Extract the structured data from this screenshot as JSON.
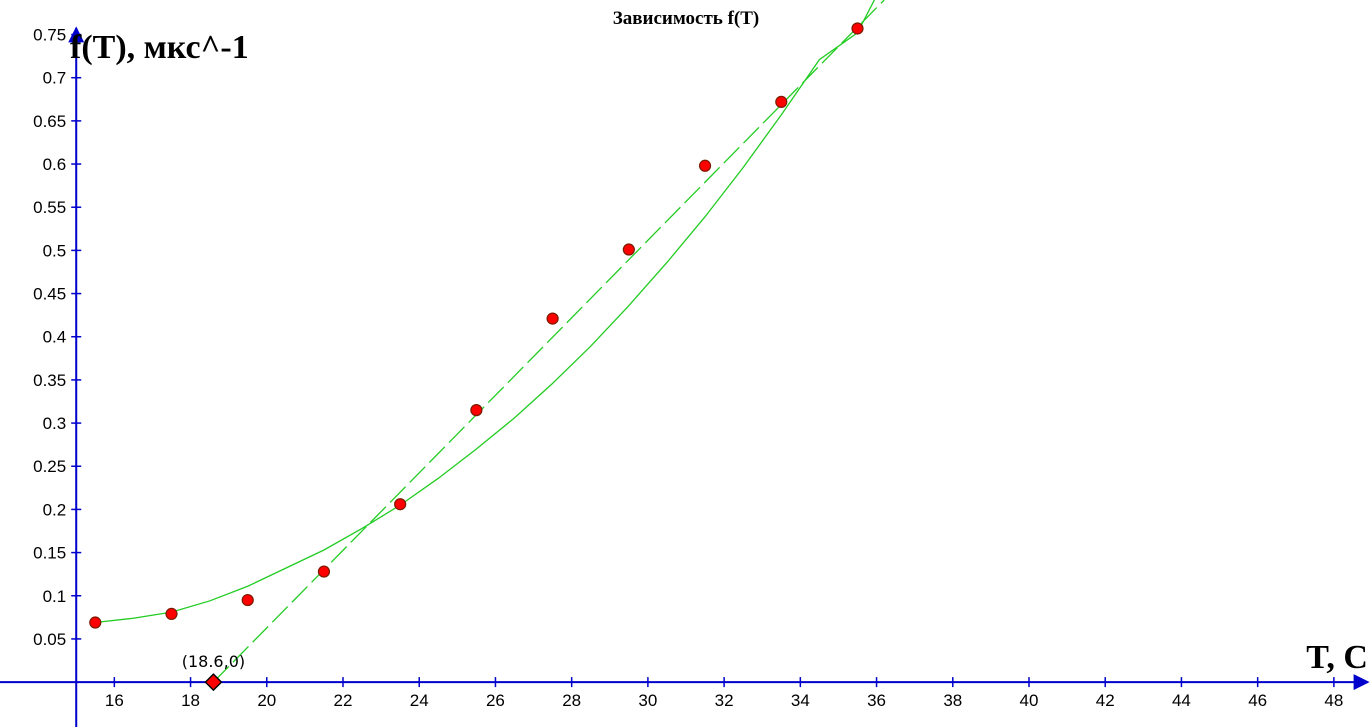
{
  "chart_data": {
    "type": "scatter",
    "title": "Зависимость f(T)",
    "xlabel": "T, C",
    "ylabel": "f(T), мкс^-1",
    "xlim": [
      13.0,
      49.0
    ],
    "ylim": [
      -0.052,
      0.79
    ],
    "x_ticks": [
      16,
      18,
      20,
      22,
      24,
      26,
      28,
      30,
      32,
      34,
      36,
      38,
      40,
      42,
      44,
      46,
      48
    ],
    "y_ticks": [
      0.05,
      0.1,
      0.15,
      0.2,
      0.25,
      0.3,
      0.35,
      0.4,
      0.45,
      0.5,
      0.55,
      0.6,
      0.65,
      0.7,
      0.75
    ],
    "y_tick_labels": [
      "0.05",
      "0.1",
      "0.15",
      "0.2",
      "0.25",
      "0.3",
      "0.35",
      "0.4",
      "0.45",
      "0.5",
      "0.55",
      "0.6",
      "0.65",
      "0.7",
      "0.75"
    ],
    "grid": false,
    "series": [
      {
        "type": "scatter",
        "x": [
          15.5,
          17.5,
          19.5,
          21.5,
          23.5,
          25.5,
          27.5,
          29.5,
          31.5,
          33.5,
          35.5
        ],
        "y": [
          0.069,
          0.079,
          0.095,
          0.128,
          0.206,
          0.315,
          0.421,
          0.501,
          0.598,
          0.672,
          0.757
        ],
        "color": "#ff0000"
      },
      {
        "type": "line",
        "style": "solid",
        "x": [
          15.5,
          16.5,
          17.5,
          18.5,
          19.5,
          20.5,
          21.5,
          22.5,
          23.5,
          24.5,
          25.5,
          26.5,
          27.5,
          28.5,
          29.5,
          30.5,
          31.5,
          32.5,
          33.5,
          34.5,
          35.5,
          36.0
        ],
        "y": [
          0.069,
          0.074,
          0.081,
          0.094,
          0.111,
          0.132,
          0.153,
          0.178,
          0.205,
          0.236,
          0.27,
          0.306,
          0.346,
          0.389,
          0.436,
          0.486,
          0.539,
          0.596,
          0.657,
          0.721,
          0.752,
          0.795
        ],
        "color": "#22cc22"
      },
      {
        "type": "line",
        "style": "dashed",
        "x": [
          18.6,
          36.2
        ],
        "y": [
          0.0,
          0.79
        ],
        "color": "#22cc22"
      }
    ],
    "annotations": [
      {
        "text": "(18.6,0)",
        "x": 18.6,
        "y": 0.0,
        "marker": "diamond",
        "color": "#ff0000"
      }
    ]
  }
}
